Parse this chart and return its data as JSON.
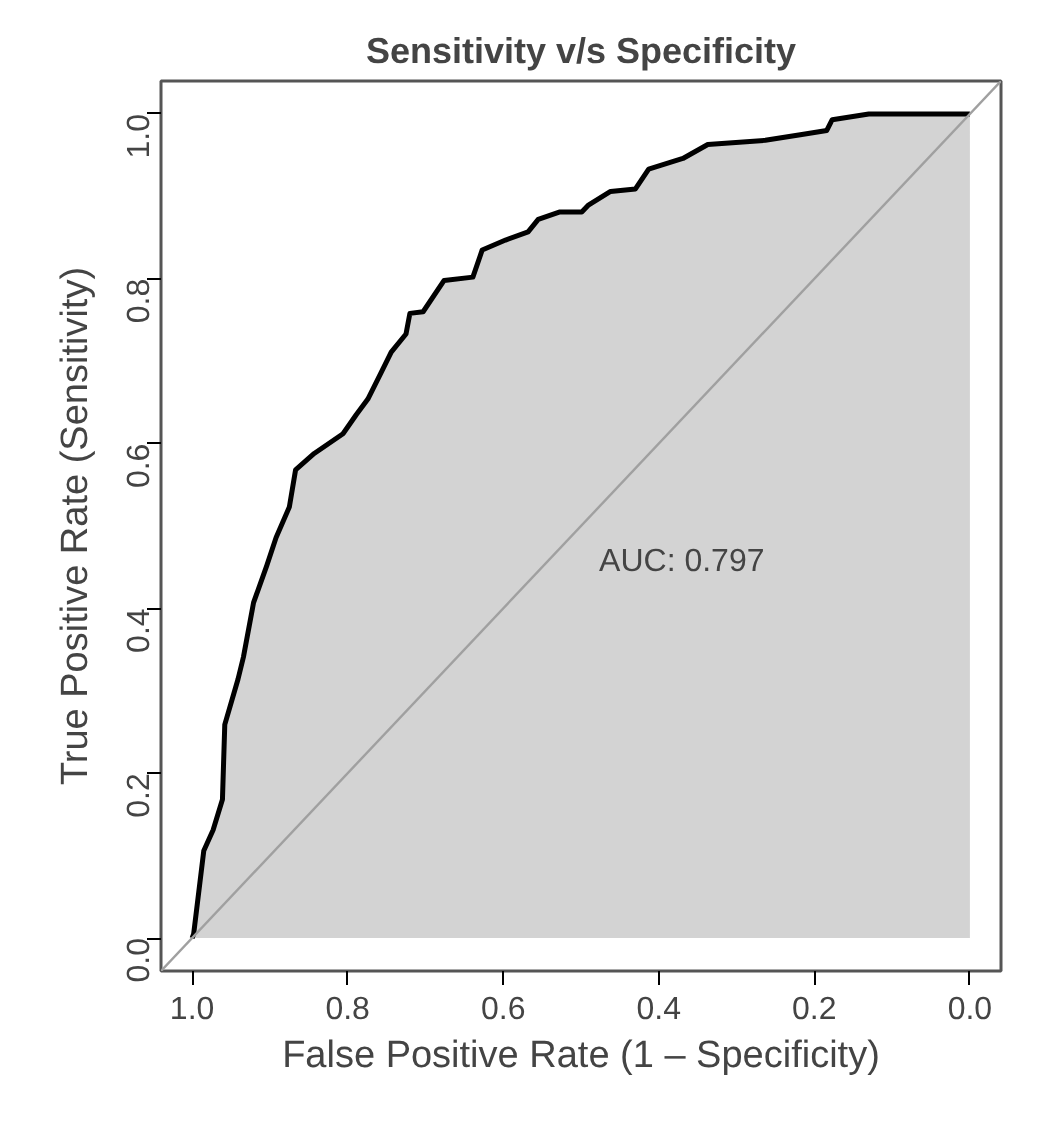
{
  "chart_data": {
    "type": "area",
    "title": "Sensitivity v/s Specificity",
    "xlabel": "False Positive Rate (1 – Specificity)",
    "ylabel": "True Positive Rate (Sensitivity)",
    "xlim": [
      1.04,
      -0.04
    ],
    "ylim": [
      -0.04,
      1.04
    ],
    "xticks": [
      {
        "value": 1,
        "label": "1.0"
      },
      {
        "value": 0.8,
        "label": "0.8"
      },
      {
        "value": 0.6,
        "label": "0.6"
      },
      {
        "value": 0.4,
        "label": "0.4"
      },
      {
        "value": 0.2,
        "label": "0.2"
      },
      {
        "value": 0,
        "label": "0.0"
      }
    ],
    "yticks": [
      {
        "value": 0,
        "label": "0.0"
      },
      {
        "value": 0.2,
        "label": "0.2"
      },
      {
        "value": 0.4,
        "label": "0.4"
      },
      {
        "value": 0.6,
        "label": "0.6"
      },
      {
        "value": 0.8,
        "label": "0.8"
      },
      {
        "value": 1,
        "label": "1.0"
      }
    ],
    "grid": false,
    "annotations": [
      "AUC: 0.797"
    ],
    "series": [
      {
        "color": "#d3d3d3",
        "x": [
          1.0,
          0.998,
          0.985,
          0.973,
          0.961,
          0.958,
          0.941,
          0.934,
          0.921,
          0.904,
          0.892,
          0.875,
          0.867,
          0.843,
          0.806,
          0.789,
          0.774,
          0.757,
          0.744,
          0.725,
          0.72,
          0.703,
          0.676,
          0.639,
          0.627,
          0.597,
          0.568,
          0.555,
          0.528,
          0.499,
          0.491,
          0.462,
          0.43,
          0.413,
          0.369,
          0.337,
          0.263,
          0.216,
          0.184,
          0.177,
          0.13,
          0.0
        ],
        "values": [
          0.0,
          0.005,
          0.106,
          0.131,
          0.168,
          0.259,
          0.314,
          0.341,
          0.407,
          0.452,
          0.486,
          0.523,
          0.568,
          0.588,
          0.612,
          0.635,
          0.654,
          0.686,
          0.711,
          0.733,
          0.758,
          0.76,
          0.798,
          0.802,
          0.835,
          0.847,
          0.857,
          0.872,
          0.881,
          0.881,
          0.889,
          0.906,
          0.909,
          0.933,
          0.946,
          0.963,
          0.968,
          0.975,
          0.98,
          0.993,
          1.0,
          1.0
        ]
      },
      {
        "type": "line",
        "color": "#a0a0a0",
        "x": [
          1.04,
          -0.04
        ],
        "values": [
          -0.04,
          1.04
        ]
      }
    ]
  }
}
